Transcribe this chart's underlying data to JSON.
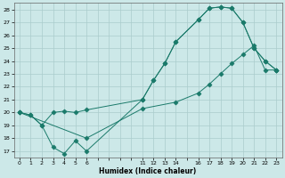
{
  "xlabel": "Humidex (Indice chaleur)",
  "bg_color": "#cce8e8",
  "grid_color": "#aacccc",
  "line_color": "#1a7a6a",
  "xlim": [
    -0.5,
    23.5
  ],
  "ylim": [
    16.5,
    28.5
  ],
  "yticks": [
    17,
    18,
    19,
    20,
    21,
    22,
    23,
    24,
    25,
    26,
    27,
    28
  ],
  "xtick_labels": [
    "0",
    "1",
    "2",
    "3",
    "4",
    "5",
    "6",
    "",
    "",
    "",
    "",
    "11",
    "12",
    "13",
    "14",
    "",
    "16",
    "17",
    "18",
    "19",
    "20",
    "21",
    "22",
    "23"
  ],
  "xtick_positions": [
    0,
    1,
    2,
    3,
    4,
    5,
    6,
    7,
    8,
    9,
    10,
    11,
    12,
    13,
    14,
    15,
    16,
    17,
    18,
    19,
    20,
    21,
    22,
    23
  ],
  "line1_x": [
    0,
    1,
    2,
    3,
    4,
    5,
    6,
    11,
    12,
    13,
    14,
    16,
    17,
    18,
    19,
    20,
    21,
    22,
    23
  ],
  "line1_y": [
    20.0,
    19.8,
    19.0,
    17.3,
    16.8,
    17.8,
    17.0,
    21.0,
    22.5,
    23.8,
    25.5,
    27.2,
    28.1,
    28.2,
    28.1,
    27.0,
    25.0,
    24.0,
    23.3
  ],
  "line2_x": [
    0,
    1,
    2,
    3,
    4,
    5,
    6,
    11,
    12,
    13,
    14,
    16,
    17,
    18,
    19,
    20,
    21,
    22,
    23
  ],
  "line2_y": [
    20.0,
    19.8,
    19.0,
    20.0,
    20.1,
    20.0,
    20.2,
    21.0,
    22.5,
    23.8,
    25.5,
    27.2,
    28.1,
    28.2,
    28.1,
    27.0,
    25.0,
    24.0,
    23.3
  ],
  "line3_x": [
    0,
    6,
    11,
    14,
    16,
    17,
    18,
    19,
    20,
    21,
    22,
    23
  ],
  "line3_y": [
    20.0,
    18.0,
    20.3,
    20.8,
    21.5,
    22.2,
    23.0,
    23.8,
    24.5,
    25.2,
    23.3,
    23.3
  ]
}
